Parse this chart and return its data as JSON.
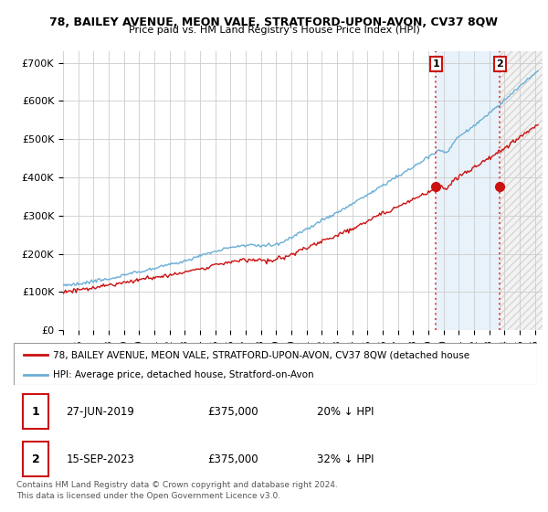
{
  "title1": "78, BAILEY AVENUE, MEON VALE, STRATFORD-UPON-AVON, CV37 8QW",
  "title2": "Price paid vs. HM Land Registry's House Price Index (HPI)",
  "ylabel_ticks": [
    "£0",
    "£100K",
    "£200K",
    "£300K",
    "£400K",
    "£500K",
    "£600K",
    "£700K"
  ],
  "ytick_values": [
    0,
    100000,
    200000,
    300000,
    400000,
    500000,
    600000,
    700000
  ],
  "ylim": [
    0,
    730000
  ],
  "xlim_start": 1995.0,
  "xlim_end": 2026.5,
  "hpi_color": "#6aaed6",
  "price_color": "#cc1111",
  "point1_x": 2019.49,
  "point1_y": 375000,
  "point2_x": 2023.71,
  "point2_y": 375000,
  "legend_line1": "78, BAILEY AVENUE, MEON VALE, STRATFORD-UPON-AVON, CV37 8QW (detached house",
  "legend_line2": "HPI: Average price, detached house, Stratford-on-Avon",
  "table_row1": [
    "1",
    "27-JUN-2019",
    "£375,000",
    "20% ↓ HPI"
  ],
  "table_row2": [
    "2",
    "15-SEP-2023",
    "£375,000",
    "32% ↓ HPI"
  ],
  "footnote": "Contains HM Land Registry data © Crown copyright and database right 2024.\nThis data is licensed under the Open Government Licence v3.0.",
  "bg_color": "#ffffff",
  "grid_color": "#cccccc",
  "hpi_fill_color": "#d6e8f7",
  "shade_between_color": "#daeaf7",
  "hatch_color": "#cccccc"
}
